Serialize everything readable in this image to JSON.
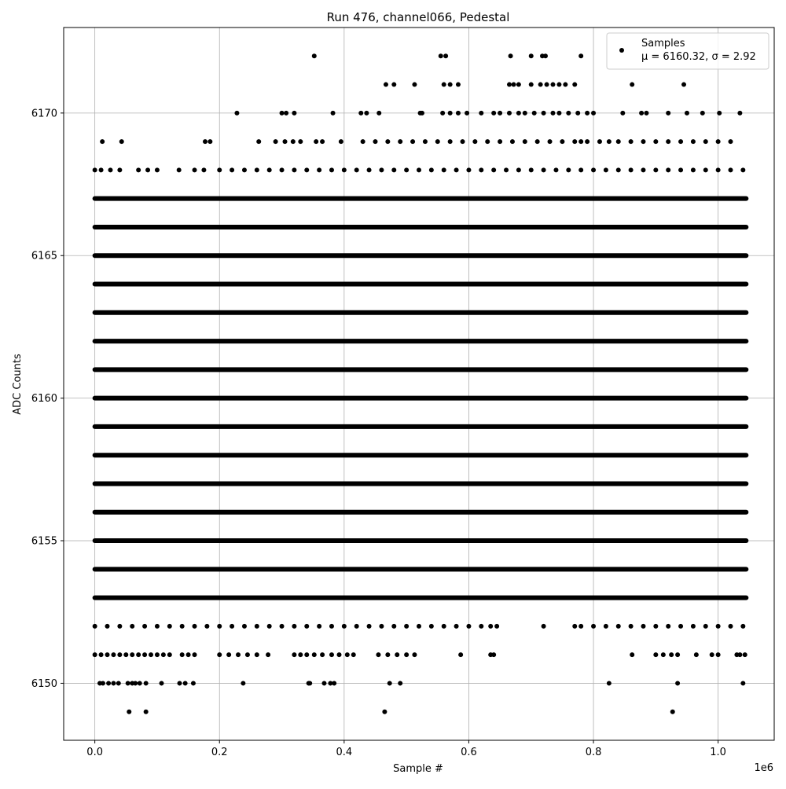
{
  "chart_data": {
    "type": "scatter",
    "title": "Run 476, channel066, Pedestal",
    "xlabel": "Sample #",
    "ylabel": "ADC Counts",
    "x_offset_label": "1e6",
    "xlim": [
      -50000,
      1090000
    ],
    "ylim": [
      6148,
      6173
    ],
    "xticks": [
      0.0,
      200000,
      400000,
      600000,
      800000,
      1000000
    ],
    "xtick_labels": [
      "0.0",
      "0.2",
      "0.4",
      "0.6",
      "0.8",
      "1.0"
    ],
    "yticks": [
      6150,
      6155,
      6160,
      6165,
      6170
    ],
    "ytick_labels": [
      "6150",
      "6155",
      "6160",
      "6165",
      "6170"
    ],
    "grid": true,
    "legend": {
      "placement": "top-right",
      "series_name": "Samples",
      "stats_text": "μ = 6160.32, σ = 2.92"
    },
    "marker_color": "#000000",
    "sample_range": [
      0,
      1045000
    ],
    "dense_levels": [
      6153,
      6154,
      6155,
      6156,
      6157,
      6158,
      6159,
      6160,
      6161,
      6162,
      6163,
      6164,
      6165,
      6166,
      6167
    ],
    "sparse_points": {
      "6149": [
        55000,
        82000,
        465000,
        927000
      ],
      "6150": [
        8000,
        13000,
        22000,
        30000,
        38000,
        53000,
        60000,
        65000,
        72000,
        82000,
        107000,
        136000,
        145000,
        158000,
        238000,
        343000,
        345000,
        368000,
        378000,
        384000,
        473000,
        490000,
        825000,
        935000,
        1040000
      ],
      "6151": [
        0,
        10000,
        20000,
        30000,
        40000,
        50000,
        60000,
        70000,
        80000,
        90000,
        100000,
        110000,
        120000,
        140000,
        150000,
        160000,
        200000,
        215000,
        230000,
        245000,
        260000,
        278000,
        320000,
        330000,
        340000,
        352000,
        365000,
        380000,
        392000,
        405000,
        415000,
        455000,
        470000,
        485000,
        500000,
        513000,
        587000,
        635000,
        640000,
        862000,
        900000,
        912000,
        925000,
        935000,
        965000,
        990000,
        1000000,
        1030000,
        1035000,
        1043000
      ],
      "6152": [
        0,
        20000,
        40000,
        60000,
        80000,
        100000,
        120000,
        140000,
        160000,
        180000,
        200000,
        220000,
        240000,
        260000,
        280000,
        300000,
        320000,
        340000,
        360000,
        380000,
        400000,
        420000,
        440000,
        460000,
        480000,
        500000,
        520000,
        540000,
        560000,
        580000,
        600000,
        620000,
        635000,
        645000,
        720000,
        770000,
        780000,
        800000,
        820000,
        840000,
        860000,
        880000,
        900000,
        920000,
        940000,
        960000,
        980000,
        1000000,
        1020000,
        1040000
      ],
      "6168": [
        0,
        10000,
        25000,
        40000,
        70000,
        85000,
        100000,
        135000,
        160000,
        175000,
        200000,
        220000,
        240000,
        260000,
        280000,
        300000,
        320000,
        340000,
        360000,
        380000,
        400000,
        420000,
        440000,
        460000,
        480000,
        500000,
        520000,
        540000,
        560000,
        580000,
        600000,
        620000,
        640000,
        660000,
        680000,
        700000,
        720000,
        740000,
        760000,
        780000,
        800000,
        820000,
        840000,
        860000,
        880000,
        900000,
        920000,
        940000,
        960000,
        980000,
        1000000,
        1020000,
        1040000
      ],
      "6169": [
        12000,
        43000,
        177000,
        185000,
        263000,
        290000,
        305000,
        318000,
        330000,
        355000,
        365000,
        395000,
        430000,
        450000,
        470000,
        490000,
        510000,
        530000,
        550000,
        570000,
        590000,
        610000,
        630000,
        650000,
        670000,
        690000,
        710000,
        730000,
        750000,
        770000,
        780000,
        790000,
        810000,
        825000,
        840000,
        860000,
        880000,
        900000,
        920000,
        940000,
        960000,
        980000,
        1000000,
        1020000
      ],
      "6170": [
        228000,
        300000,
        307000,
        320000,
        382000,
        427000,
        436000,
        456000,
        522000,
        525000,
        558000,
        570000,
        583000,
        597000,
        620000,
        640000,
        650000,
        665000,
        680000,
        690000,
        705000,
        720000,
        735000,
        745000,
        760000,
        775000,
        790000,
        800000,
        847000,
        877000,
        885000,
        920000,
        950000,
        975000,
        1002000,
        1035000
      ],
      "6171": [
        467000,
        480000,
        513000,
        560000,
        570000,
        583000,
        665000,
        672000,
        680000,
        700000,
        715000,
        725000,
        735000,
        745000,
        755000,
        770000,
        862000,
        945000
      ],
      "6172": [
        352000,
        555000,
        563000,
        667000,
        700000,
        718000,
        723000,
        780000
      ]
    }
  }
}
